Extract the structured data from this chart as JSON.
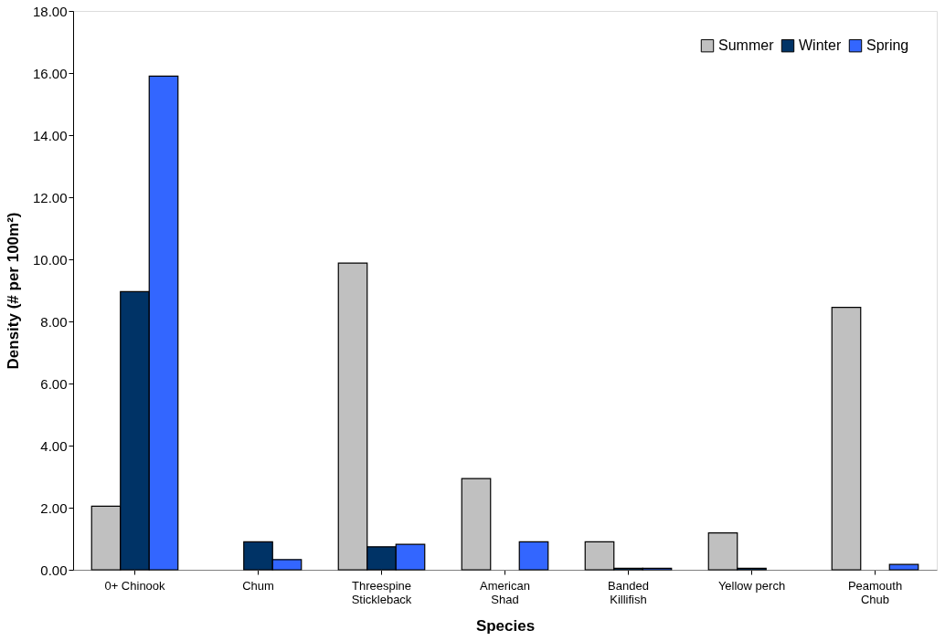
{
  "chart_data": {
    "type": "bar",
    "xlabel": "Species",
    "ylabel": "Density (# per 100m²)",
    "categories": [
      "0+ Chinook",
      "Chum",
      "Threespine\nStickleback",
      "American\nShad",
      "Banded\nKillifish",
      "Yellow perch",
      "Peamouth\nChub"
    ],
    "series": [
      {
        "name": "Summer",
        "color": "#c0c0c0",
        "values": [
          2.05,
          null,
          9.88,
          2.94,
          0.9,
          1.19,
          8.45
        ]
      },
      {
        "name": "Winter",
        "color": "#003366",
        "values": [
          8.96,
          0.9,
          0.74,
          null,
          0.05,
          0.05,
          null
        ]
      },
      {
        "name": "Spring",
        "color": "#3366ff",
        "values": [
          15.9,
          0.33,
          0.82,
          0.9,
          0.05,
          null,
          0.17
        ]
      }
    ],
    "ylim": [
      0,
      18
    ],
    "yticks": [
      {
        "value": 0,
        "label": "0.00"
      },
      {
        "value": 2,
        "label": "2.00"
      },
      {
        "value": 4,
        "label": "4.00"
      },
      {
        "value": 6,
        "label": "6.00"
      },
      {
        "value": 8,
        "label": "8.00"
      },
      {
        "value": 10,
        "label": "10.00"
      },
      {
        "value": 12,
        "label": "12.00"
      },
      {
        "value": 14,
        "label": "14.00"
      },
      {
        "value": 16,
        "label": "16.00"
      },
      {
        "value": 18,
        "label": "18.00"
      }
    ],
    "grid": false,
    "legend": "top right"
  }
}
